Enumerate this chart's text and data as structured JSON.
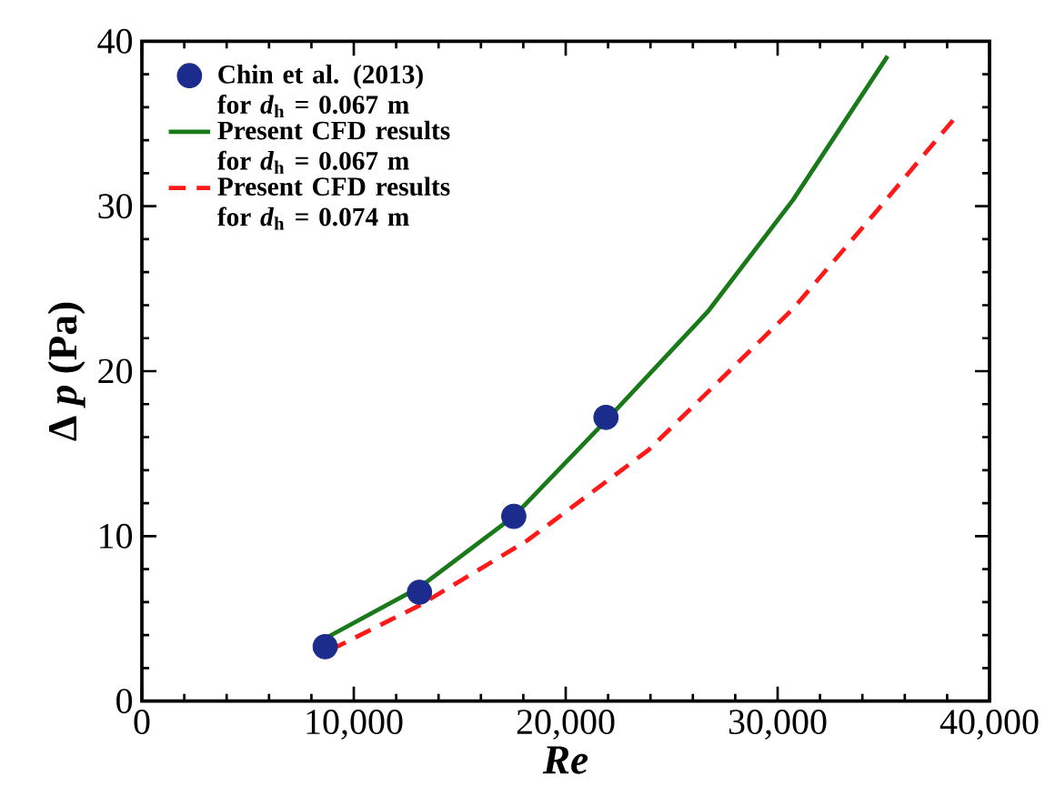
{
  "chart_data": {
    "type": "line",
    "xlabel": "Re",
    "ylabel": "Δ *p* (Pa)",
    "xlim": [
      0,
      40000
    ],
    "ylim": [
      0,
      40
    ],
    "xticks": [
      0,
      {
        "value": 10000,
        "label": "10,000"
      },
      {
        "value": 20000,
        "label": "20,000"
      },
      {
        "value": 30000,
        "label": "30,000"
      },
      {
        "value": 40000,
        "label": "40,000"
      }
    ],
    "yticks": [
      0,
      10,
      20,
      30,
      40
    ],
    "legend": "top left",
    "series": [
      {
        "name": "Chin et al. (2013) for *d*$_{h}$ = 0.067  m",
        "type": "scatter",
        "color": "#1c2c8c",
        "x": [
          8650,
          13100,
          17550,
          21900
        ],
        "values": [
          3.3,
          6.6,
          11.2,
          17.2
        ]
      },
      {
        "name": "Present CFD results for *d*$_{h}$ = 0.067  m",
        "line_style": "solid",
        "color": "#1a7a1a",
        "x": [
          8650,
          13100,
          17550,
          21900,
          26700,
          30740,
          35190
        ],
        "values": [
          3.8,
          6.9,
          11.2,
          17.0,
          23.6,
          30.4,
          39.1
        ]
      },
      {
        "name": "Present CFD results for *d*$_{h}$ = 0.074  m",
        "line_style": "dashed",
        "color": "#ff1a1a",
        "x": [
          8900,
          13100,
          18150,
          23890,
          30740,
          34670,
          38530
        ],
        "values": [
          3.1,
          5.8,
          9.7,
          15.2,
          23.8,
          29.7,
          35.6
        ]
      }
    ]
  }
}
